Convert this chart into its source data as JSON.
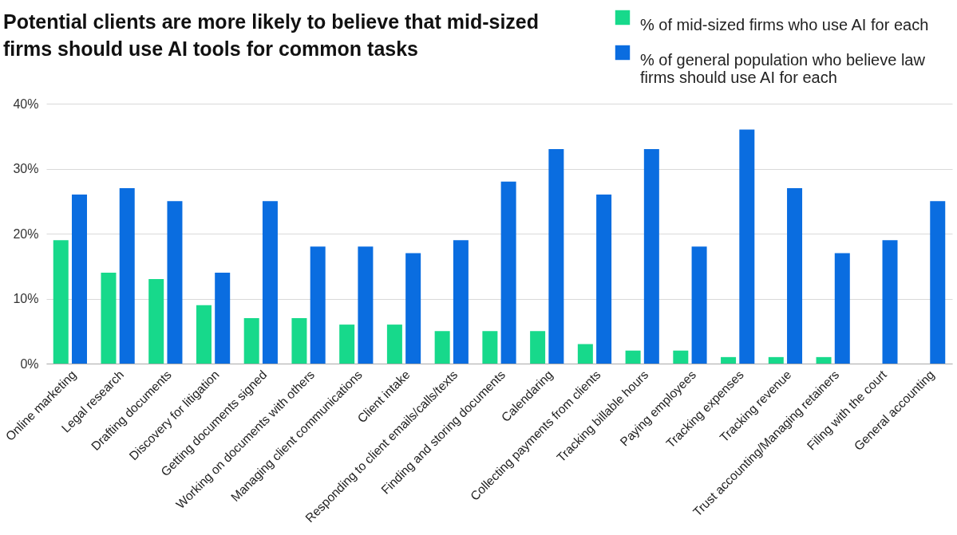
{
  "chart_data": {
    "type": "bar",
    "title": [
      "Potential clients are more likely to believe that mid-sized",
      "firms should use AI tools for common tasks"
    ],
    "categories": [
      "Online marketing",
      "Legal research",
      "Drafting documents",
      "Discovery for litigation",
      "Getting documents signed",
      "Working on documents with others",
      "Managing client communications",
      "Client intake",
      "Responding to client emails/calls/texts",
      "Finding and storing documents",
      "Calendaring",
      "Collecting payments from clients",
      "Tracking billable hours",
      "Paying employees",
      "Tracking expenses",
      "Tracking revenue",
      "Trust accounting/Managing retainers",
      "Filing with the court",
      "General accounting"
    ],
    "series": [
      {
        "name": "% of mid-sized firms who use AI for each",
        "color": "#17d98b",
        "values": [
          19,
          14,
          13,
          9,
          7,
          7,
          6,
          6,
          5,
          5,
          5,
          3,
          2,
          2,
          1,
          1,
          1,
          null,
          null
        ]
      },
      {
        "name": "% of general population who believe law firms should use AI for each",
        "color": "#0a6de0",
        "values": [
          26,
          27,
          25,
          14,
          25,
          18,
          18,
          17,
          19,
          28,
          33,
          26,
          33,
          18,
          36,
          27,
          17,
          19,
          25
        ]
      }
    ],
    "ylim": [
      0,
      40
    ],
    "yticks": [
      {
        "value": 0,
        "label": "0%"
      },
      {
        "value": 10,
        "label": "10%"
      },
      {
        "value": 20,
        "label": "20%"
      },
      {
        "value": 30,
        "label": "30%"
      },
      {
        "value": 40,
        "label": "40%"
      }
    ],
    "grid": "y",
    "legend": "top right"
  }
}
